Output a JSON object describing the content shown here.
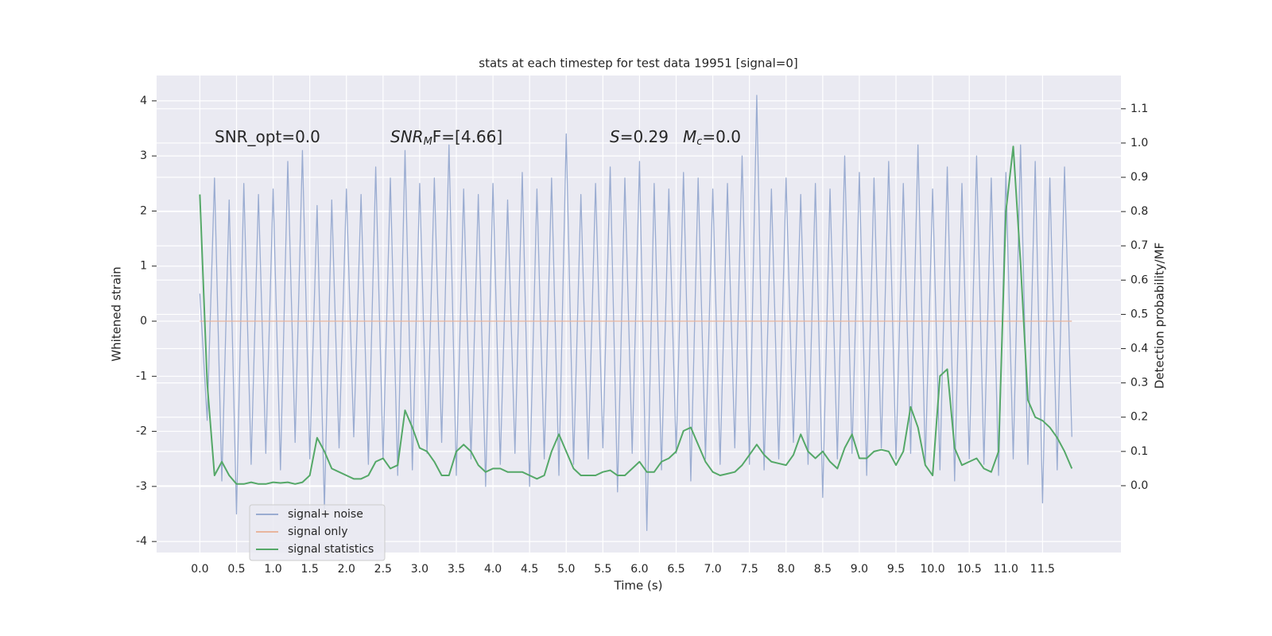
{
  "chart_data": {
    "type": "line",
    "title": "stats at each timestep for test data 19951 [signal=0]",
    "xlabel": "Time (s)",
    "ylabel": "Whitened strain",
    "y2label": "Detection probability/MF",
    "xlim": [
      -0.59,
      12.57
    ],
    "ylim": [
      -4.2,
      4.46
    ],
    "y2lim": [
      -0.195,
      1.197
    ],
    "xticks": [
      {
        "value": 0,
        "label": "0.0"
      },
      0.5,
      {
        "value": 1,
        "label": "1.0"
      },
      1.5,
      {
        "value": 2,
        "label": "2.0"
      },
      2.5,
      {
        "value": 3,
        "label": "3.0"
      },
      3.5,
      {
        "value": 4,
        "label": "4.0"
      },
      4.5,
      {
        "value": 5,
        "label": "5.0"
      },
      5.5,
      {
        "value": 6,
        "label": "6.0"
      },
      6.5,
      {
        "value": 7,
        "label": "7.0"
      },
      7.5,
      {
        "value": 8,
        "label": "8.0"
      },
      8.5,
      {
        "value": 9,
        "label": "9.0"
      },
      9.5,
      {
        "value": 10,
        "label": "10.0"
      },
      10.5,
      {
        "value": 11,
        "label": "11.0"
      },
      11.5
    ],
    "yticks": [
      -4,
      -3,
      -2,
      -1,
      0,
      1,
      2,
      3,
      4
    ],
    "y2ticks": [
      {
        "value": 0,
        "label": "0.0"
      },
      0.1,
      0.2,
      0.3,
      0.4,
      0.5,
      0.6,
      0.7,
      0.8,
      0.9,
      {
        "value": 1,
        "label": "1.0"
      },
      1.1
    ],
    "grid": true,
    "legend": "lower left",
    "annotations": [
      {
        "parts": [
          {
            "text": "SNR_opt=0.0"
          }
        ]
      },
      {
        "parts": [
          {
            "text": "SNR",
            "italic": true
          },
          {
            "text": "M",
            "italic": true,
            "sub": true
          },
          {
            "text": "F=[4.66]"
          }
        ]
      },
      {
        "parts": [
          {
            "text": "S",
            "italic": true
          },
          {
            "text": "=0.29"
          }
        ]
      },
      {
        "parts": [
          {
            "text": "M",
            "italic": true
          },
          {
            "text": "c",
            "italic": true,
            "sub": true
          },
          {
            "text": "=0.0"
          }
        ]
      }
    ],
    "x": [
      0.0,
      0.1,
      0.2,
      0.3,
      0.4,
      0.5,
      0.6,
      0.7,
      0.8,
      0.9,
      1.0,
      1.1,
      1.2,
      1.3,
      1.4,
      1.5,
      1.6,
      1.7,
      1.8,
      1.9,
      2.0,
      2.1,
      2.2,
      2.3,
      2.4,
      2.5,
      2.6,
      2.7,
      2.8,
      2.9,
      3.0,
      3.1,
      3.2,
      3.3,
      3.4,
      3.5,
      3.6,
      3.7,
      3.8,
      3.9,
      4.0,
      4.1,
      4.2,
      4.3,
      4.4,
      4.5,
      4.6,
      4.7,
      4.8,
      4.9,
      5.0,
      5.1,
      5.2,
      5.3,
      5.4,
      5.5,
      5.6,
      5.7,
      5.8,
      5.9,
      6.0,
      6.1,
      6.2,
      6.3,
      6.4,
      6.5,
      6.6,
      6.7,
      6.8,
      6.9,
      7.0,
      7.1,
      7.2,
      7.3,
      7.4,
      7.5,
      7.6,
      7.7,
      7.8,
      7.9,
      8.0,
      8.1,
      8.2,
      8.3,
      8.4,
      8.5,
      8.6,
      8.7,
      8.8,
      8.9,
      9.0,
      9.1,
      9.2,
      9.3,
      9.4,
      9.5,
      9.6,
      9.7,
      9.8,
      9.9,
      10.0,
      10.1,
      10.2,
      10.3,
      10.4,
      10.5,
      10.6,
      10.7,
      10.8,
      10.9,
      11.0,
      11.1,
      11.2,
      11.3,
      11.4,
      11.5,
      11.6,
      11.7,
      11.8,
      11.9
    ],
    "series": [
      {
        "name": "signal+ noise",
        "color": "#9aacd1",
        "values": [
          0.5,
          -1.8,
          2.6,
          -2.9,
          2.2,
          -3.5,
          2.5,
          -2.6,
          2.3,
          -2.4,
          2.4,
          -2.7,
          2.9,
          -2.2,
          3.1,
          -2.5,
          2.1,
          -3.4,
          2.2,
          -2.3,
          2.4,
          -2.1,
          2.3,
          -2.6,
          2.8,
          -2.5,
          2.6,
          -2.8,
          3.1,
          -2.7,
          2.5,
          -2.4,
          2.6,
          -2.2,
          3.2,
          -2.8,
          2.4,
          -2.5,
          2.3,
          -3.0,
          2.5,
          -2.6,
          2.2,
          -2.4,
          2.7,
          -3.0,
          2.4,
          -2.5,
          2.6,
          -2.8,
          3.4,
          -2.6,
          2.3,
          -2.5,
          2.5,
          -2.3,
          2.8,
          -3.1,
          2.6,
          -2.4,
          2.9,
          -3.8,
          2.5,
          -2.7,
          2.4,
          -2.4,
          2.7,
          -2.9,
          2.6,
          -2.5,
          2.4,
          -2.6,
          2.5,
          -2.3,
          3.0,
          -2.6,
          4.1,
          -2.7,
          2.4,
          -2.5,
          2.6,
          -2.2,
          2.3,
          -2.6,
          2.5,
          -3.2,
          2.4,
          -2.5,
          3.0,
          -2.4,
          2.7,
          -2.8,
          2.6,
          -2.3,
          2.9,
          -2.5,
          2.5,
          -2.4,
          3.2,
          -2.6,
          2.4,
          -2.7,
          2.8,
          -2.9,
          2.5,
          -2.5,
          3.0,
          -2.6,
          2.6,
          -2.8,
          2.7,
          -2.5,
          3.2,
          -2.6,
          2.9,
          -3.3,
          2.6,
          -2.7,
          2.8,
          -2.1
        ]
      },
      {
        "name": "signal only",
        "color": "#e8b59e",
        "values": [
          0,
          0,
          0,
          0,
          0,
          0,
          0,
          0,
          0,
          0,
          0,
          0,
          0,
          0,
          0,
          0,
          0,
          0,
          0,
          0,
          0,
          0,
          0,
          0,
          0,
          0,
          0,
          0,
          0,
          0,
          0,
          0,
          0,
          0,
          0,
          0,
          0,
          0,
          0,
          0,
          0,
          0,
          0,
          0,
          0,
          0,
          0,
          0,
          0,
          0,
          0,
          0,
          0,
          0,
          0,
          0,
          0,
          0,
          0,
          0,
          0,
          0,
          0,
          0,
          0,
          0,
          0,
          0,
          0,
          0,
          0,
          0,
          0,
          0,
          0,
          0,
          0,
          0,
          0,
          0,
          0,
          0,
          0,
          0,
          0,
          0,
          0,
          0,
          0,
          0,
          0,
          0,
          0,
          0,
          0,
          0,
          0,
          0,
          0,
          0,
          0,
          0,
          0,
          0,
          0,
          0,
          0,
          0,
          0,
          0,
          0,
          0,
          0,
          0,
          0,
          0,
          0,
          0,
          0,
          0
        ]
      },
      {
        "name": "signal statistics",
        "color": "#55a868",
        "axis": "y2",
        "values": [
          0.85,
          0.3,
          0.03,
          0.07,
          0.03,
          0.005,
          0.005,
          0.01,
          0.005,
          0.005,
          0.01,
          0.008,
          0.01,
          0.005,
          0.01,
          0.03,
          0.14,
          0.1,
          0.05,
          0.04,
          0.03,
          0.02,
          0.02,
          0.03,
          0.07,
          0.08,
          0.05,
          0.06,
          0.22,
          0.17,
          0.11,
          0.1,
          0.07,
          0.03,
          0.03,
          0.1,
          0.12,
          0.1,
          0.06,
          0.04,
          0.05,
          0.05,
          0.04,
          0.04,
          0.04,
          0.03,
          0.02,
          0.03,
          0.1,
          0.15,
          0.1,
          0.05,
          0.03,
          0.03,
          0.03,
          0.04,
          0.045,
          0.03,
          0.03,
          0.05,
          0.07,
          0.04,
          0.04,
          0.07,
          0.08,
          0.1,
          0.16,
          0.17,
          0.12,
          0.07,
          0.04,
          0.03,
          0.035,
          0.04,
          0.06,
          0.09,
          0.12,
          0.09,
          0.07,
          0.065,
          0.06,
          0.09,
          0.15,
          0.1,
          0.08,
          0.1,
          0.07,
          0.05,
          0.11,
          0.15,
          0.08,
          0.08,
          0.1,
          0.105,
          0.1,
          0.06,
          0.1,
          0.23,
          0.17,
          0.06,
          0.03,
          0.32,
          0.34,
          0.11,
          0.06,
          0.07,
          0.08,
          0.05,
          0.04,
          0.1,
          0.8,
          0.99,
          0.65,
          0.25,
          0.2,
          0.19,
          0.17,
          0.14,
          0.1,
          0.05
        ]
      }
    ]
  }
}
